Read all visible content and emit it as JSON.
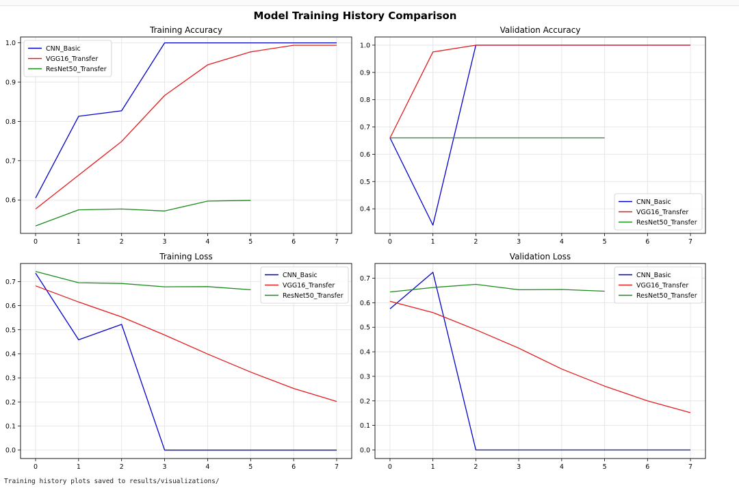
{
  "figure": {
    "suptitle": "Model Training History Comparison"
  },
  "output": {
    "message": "Training history plots saved to results/visualizations/"
  },
  "chart_data": [
    {
      "type": "line",
      "title": "Training Accuracy",
      "xlabel": "",
      "ylabel": "",
      "xlim": [
        -0.35,
        7.35
      ],
      "ylim": [
        0.515,
        1.015
      ],
      "xticks": [
        0,
        1,
        2,
        3,
        4,
        5,
        6,
        7
      ],
      "yticks": [
        0.6,
        0.7,
        0.8,
        0.9,
        1.0
      ],
      "ytick_decimals": 1,
      "grid": true,
      "legend": "top-left",
      "series": [
        {
          "name": "CNN_Basic",
          "color": "#0000cc",
          "x": [
            0,
            1,
            2,
            3,
            4,
            5,
            6,
            7
          ],
          "y": [
            0.605,
            0.813,
            0.827,
            1.0,
            1.0,
            1.0,
            1.0,
            1.0
          ]
        },
        {
          "name": "VGG16_Transfer",
          "color": "#e41a1c",
          "x": [
            0,
            1,
            2,
            3,
            4,
            5,
            6,
            7
          ],
          "y": [
            0.577,
            0.663,
            0.749,
            0.866,
            0.944,
            0.977,
            0.994,
            0.994
          ]
        },
        {
          "name": "ResNet50_Transfer",
          "color": "#1a8a1a",
          "x": [
            0,
            1,
            2,
            3,
            4,
            5
          ],
          "y": [
            0.534,
            0.575,
            0.577,
            0.572,
            0.597,
            0.599
          ]
        }
      ]
    },
    {
      "type": "line",
      "title": "Validation Accuracy",
      "xlabel": "",
      "ylabel": "",
      "xlim": [
        -0.35,
        7.35
      ],
      "ylim": [
        0.31,
        1.03
      ],
      "xticks": [
        0,
        1,
        2,
        3,
        4,
        5,
        6,
        7
      ],
      "yticks": [
        0.4,
        0.5,
        0.6,
        0.7,
        0.8,
        0.9,
        1.0
      ],
      "ytick_decimals": 1,
      "grid": true,
      "legend": "bottom-right",
      "series": [
        {
          "name": "CNN_Basic",
          "color": "#0000cc",
          "x": [
            0,
            1,
            2,
            3,
            4,
            5,
            6,
            7
          ],
          "y": [
            0.66,
            0.34,
            1.0,
            1.0,
            1.0,
            1.0,
            1.0,
            1.0
          ]
        },
        {
          "name": "VGG16_Transfer",
          "color": "#e41a1c",
          "x": [
            0,
            1,
            2,
            3,
            4,
            5,
            6,
            7
          ],
          "y": [
            0.66,
            0.975,
            1.0,
            1.0,
            1.0,
            1.0,
            1.0,
            1.0
          ]
        },
        {
          "name": "ResNet50_Transfer",
          "color": "#1a8a1a",
          "x": [
            0,
            1,
            2,
            3,
            4,
            5
          ],
          "y": [
            0.66,
            0.66,
            0.66,
            0.66,
            0.66,
            0.66
          ]
        }
      ]
    },
    {
      "type": "line",
      "title": "Training Loss",
      "xlabel": "",
      "ylabel": "",
      "xlim": [
        -0.35,
        7.35
      ],
      "ylim": [
        -0.035,
        0.775
      ],
      "xticks": [
        0,
        1,
        2,
        3,
        4,
        5,
        6,
        7
      ],
      "yticks": [
        0.0,
        0.1,
        0.2,
        0.3,
        0.4,
        0.5,
        0.6,
        0.7
      ],
      "ytick_decimals": 1,
      "grid": true,
      "legend": "top-right",
      "series": [
        {
          "name": "CNN_Basic",
          "color": "#0000cc",
          "x": [
            0,
            1,
            2,
            3,
            4,
            5,
            6,
            7
          ],
          "y": [
            0.735,
            0.458,
            0.522,
            0.0,
            0.0,
            0.0,
            0.0,
            0.0
          ]
        },
        {
          "name": "VGG16_Transfer",
          "color": "#e41a1c",
          "x": [
            0,
            1,
            2,
            3,
            4,
            5,
            6,
            7
          ],
          "y": [
            0.682,
            0.615,
            0.553,
            0.478,
            0.399,
            0.324,
            0.256,
            0.202
          ]
        },
        {
          "name": "ResNet50_Transfer",
          "color": "#1a8a1a",
          "x": [
            0,
            1,
            2,
            3,
            4,
            5
          ],
          "y": [
            0.742,
            0.695,
            0.692,
            0.678,
            0.679,
            0.666
          ]
        }
      ]
    },
    {
      "type": "line",
      "title": "Validation Loss",
      "xlabel": "",
      "ylabel": "",
      "xlim": [
        -0.35,
        7.35
      ],
      "ylim": [
        -0.035,
        0.76
      ],
      "xticks": [
        0,
        1,
        2,
        3,
        4,
        5,
        6,
        7
      ],
      "yticks": [
        0.0,
        0.1,
        0.2,
        0.3,
        0.4,
        0.5,
        0.6,
        0.7
      ],
      "ytick_decimals": 1,
      "grid": true,
      "legend": "top-right",
      "series": [
        {
          "name": "CNN_Basic",
          "color": "#0000cc",
          "x": [
            0,
            1,
            2,
            3,
            4,
            5,
            6,
            7
          ],
          "y": [
            0.575,
            0.724,
            0.0,
            0.0,
            0.0,
            0.0,
            0.0,
            0.0
          ]
        },
        {
          "name": "VGG16_Transfer",
          "color": "#e41a1c",
          "x": [
            0,
            1,
            2,
            3,
            4,
            5,
            6,
            7
          ],
          "y": [
            0.606,
            0.56,
            0.49,
            0.415,
            0.33,
            0.26,
            0.2,
            0.152
          ]
        },
        {
          "name": "ResNet50_Transfer",
          "color": "#1a8a1a",
          "x": [
            0,
            1,
            2,
            3,
            4,
            5
          ],
          "y": [
            0.644,
            0.662,
            0.675,
            0.653,
            0.654,
            0.647
          ]
        }
      ]
    }
  ]
}
